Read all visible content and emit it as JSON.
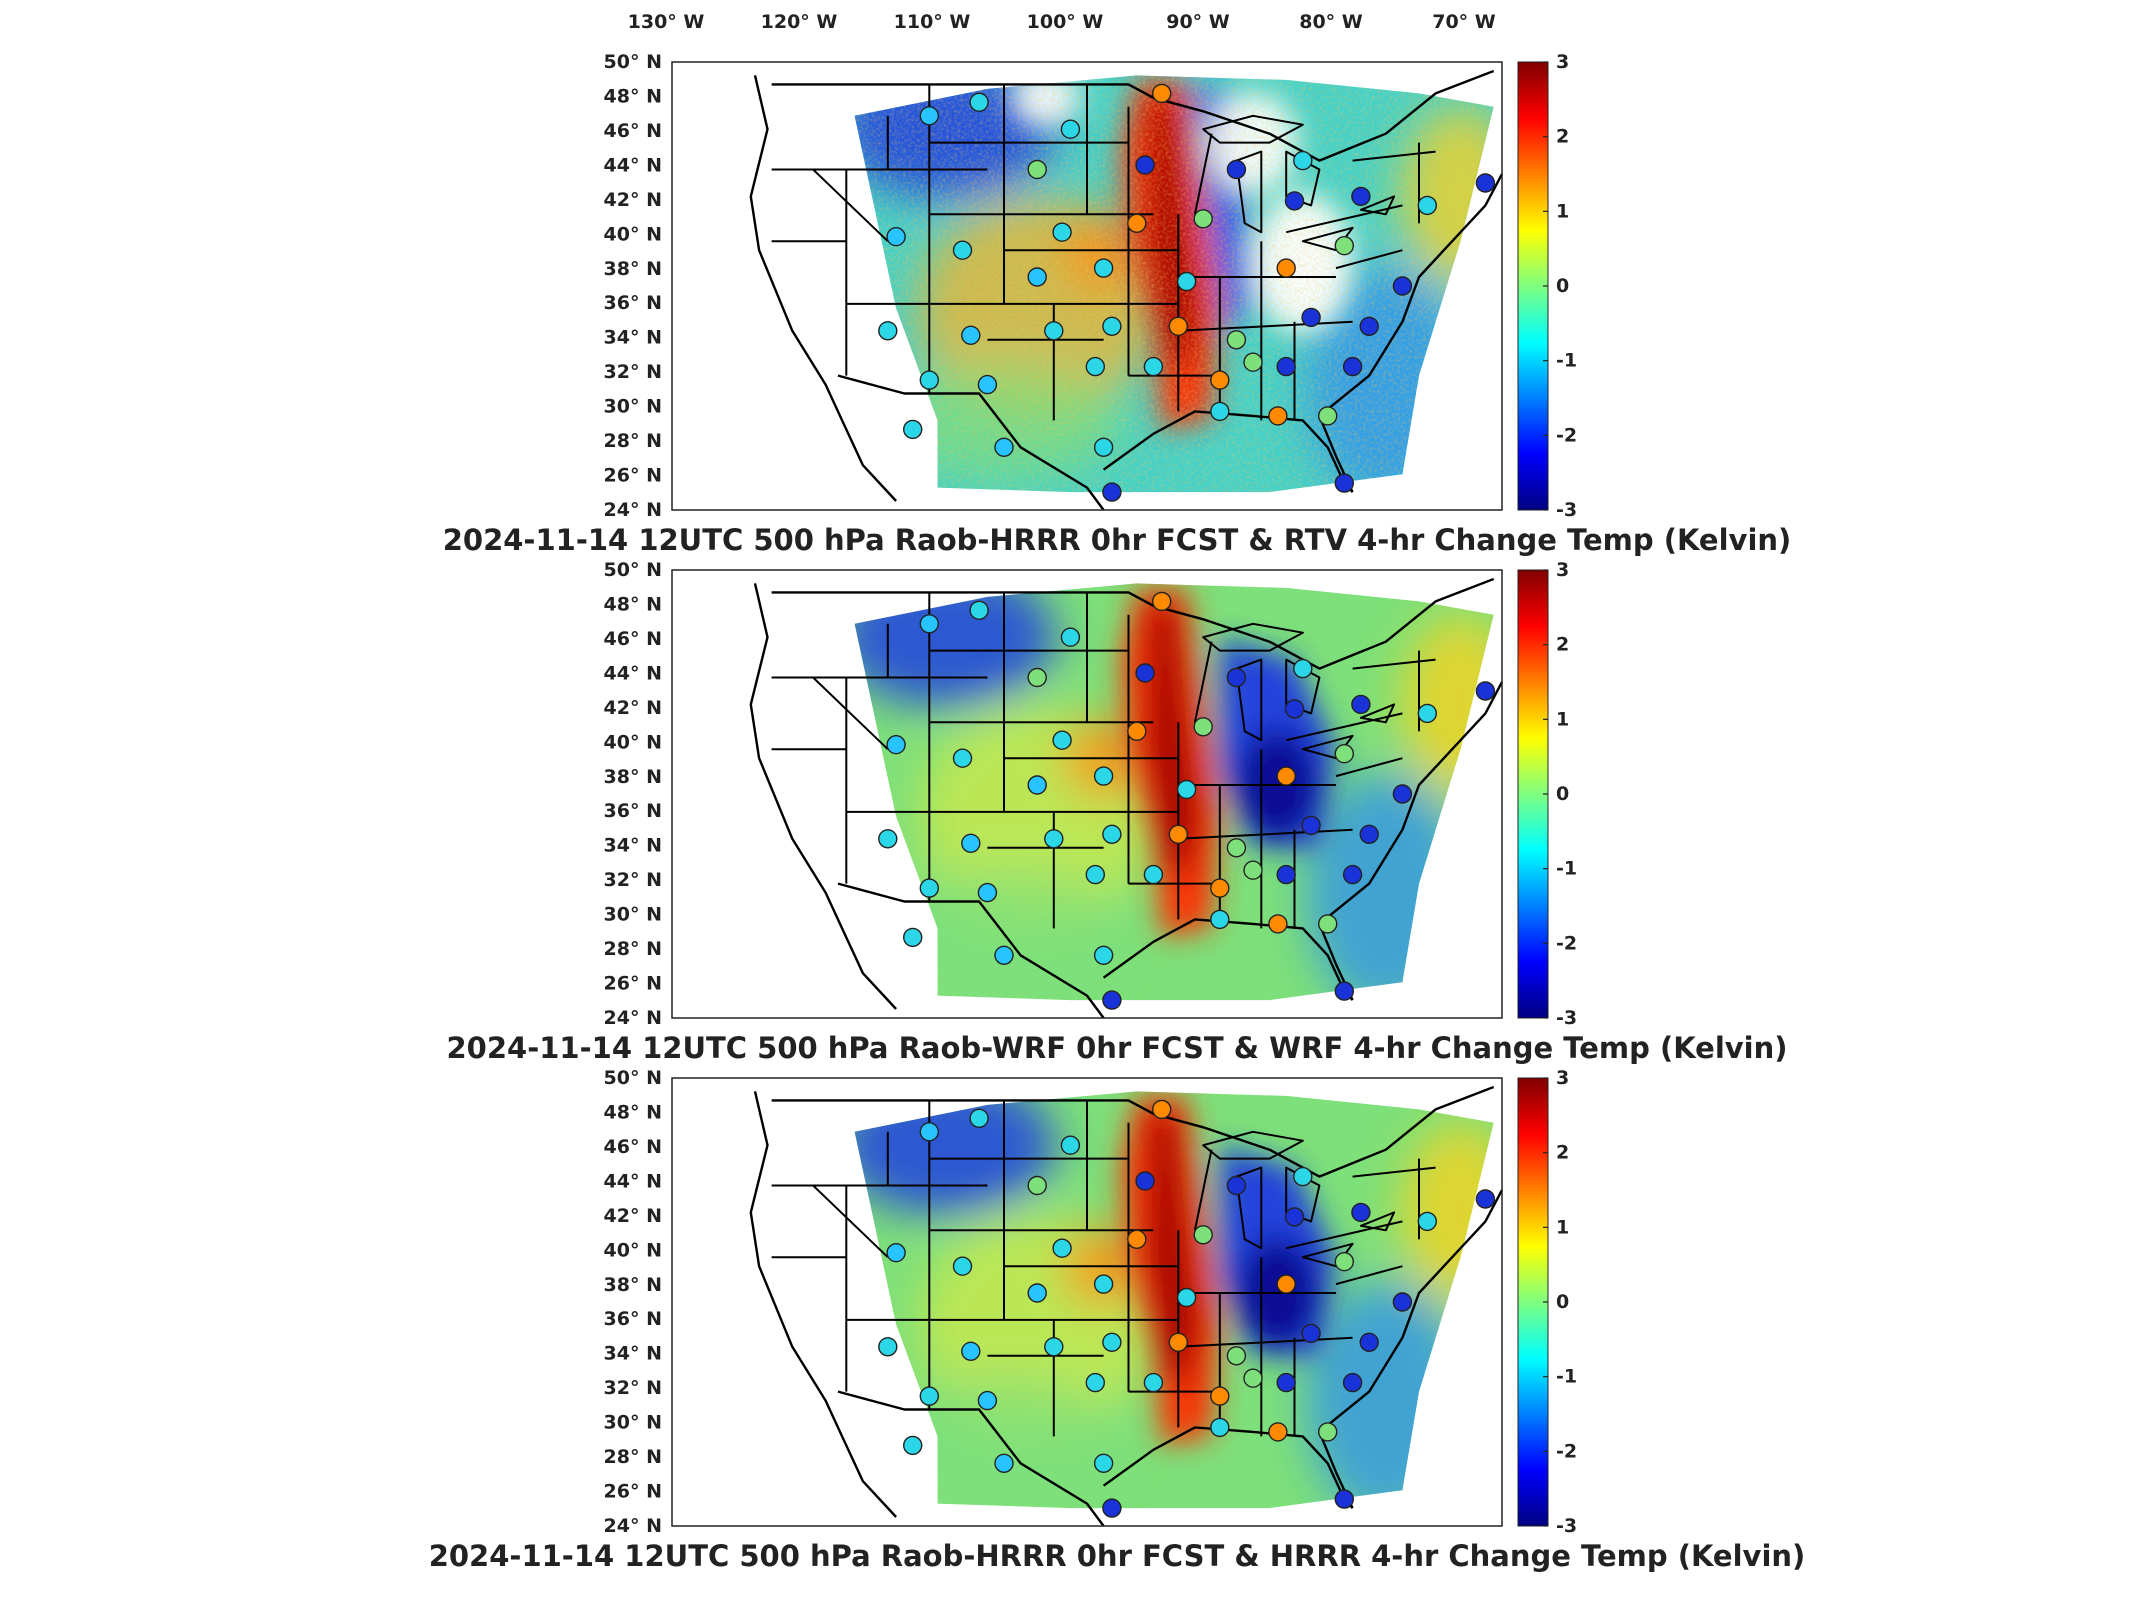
{
  "figure": {
    "lon_labels": [
      "130° W",
      "120° W",
      "110° W",
      "100° W",
      "90° W",
      "80° W",
      "70° W"
    ],
    "lat_labels": [
      "50° N",
      "48° N",
      "46° N",
      "44° N",
      "42° N",
      "40° N",
      "38° N",
      "36° N",
      "34° N",
      "32° N",
      "30° N",
      "28° N",
      "26° N",
      "24° N"
    ],
    "colorbar": {
      "min": -3,
      "max": 3,
      "tick_labels": [
        "3",
        "2",
        "1",
        "0",
        "-1",
        "-2",
        "-3"
      ],
      "colormap": "jet"
    }
  },
  "panels": [
    {
      "title": "2024-11-14 12UTC 500 hPa Raob-HRRR 0hr FCST & RTV 4-hr Change Temp (Kelvin)",
      "field": "RTV 4-hr change (noisy satellite retrieval)",
      "colors": {
        "background": "#45d2c9",
        "warm_band": "#a00000",
        "cold_band": "#1a2ad0"
      }
    },
    {
      "title": "2024-11-14 12UTC 500 hPa Raob-WRF 0hr FCST & WRF 4-hr Change Temp (Kelvin)",
      "field": "WRF 4-hr change",
      "colors": {
        "background": "#7ee07a",
        "warm_band": "#a00000",
        "cold_band": "#0a0a95"
      }
    },
    {
      "title": "2024-11-14 12UTC 500 hPa Raob-HRRR 0hr FCST & HRRR 4-hr Change Temp (Kelvin)",
      "field": "HRRR 4-hr change",
      "colors": {
        "background": "#7ee07a",
        "warm_band": "#a00000",
        "cold_band": "#0a0a95"
      }
    }
  ]
}
